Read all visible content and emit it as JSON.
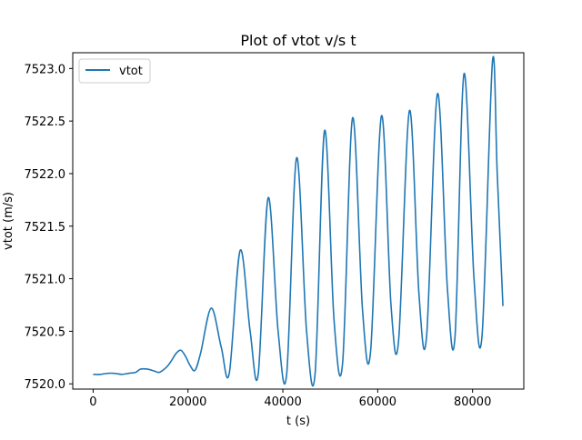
{
  "chart_data": {
    "type": "line",
    "title": "Plot of vtot v/s t",
    "xlabel": "t (s)",
    "ylabel": "vtot (m/s)",
    "xlim": [
      -4300,
      90800
    ],
    "ylim": [
      7519.95,
      7523.15
    ],
    "xticks": [
      0,
      20000,
      40000,
      60000,
      80000
    ],
    "xtick_labels": [
      "0",
      "20000",
      "40000",
      "60000",
      "80000"
    ],
    "yticks": [
      7520.0,
      7520.5,
      7521.0,
      7521.5,
      7522.0,
      7522.5,
      7523.0
    ],
    "ytick_labels": [
      "7520.0",
      "7520.5",
      "7521.0",
      "7521.5",
      "7522.0",
      "7522.5",
      "7523.0"
    ],
    "grid": false,
    "legend": {
      "position": "top-left",
      "entries": [
        "vtot"
      ]
    },
    "series": [
      {
        "name": "vtot",
        "color": "#1f77b4",
        "x": [
          0,
          1500,
          3000,
          4500,
          6000,
          7500,
          9000,
          10000,
          11500,
          13000,
          14000,
          15500,
          16500,
          17500,
          18500,
          19500,
          20500,
          21500,
          22700,
          24900,
          27000,
          28700,
          31000,
          33100,
          34800,
          36900,
          39000,
          40800,
          42900,
          45000,
          46800,
          48800,
          50800,
          52600,
          54700,
          56800,
          58500,
          60800,
          62800,
          64400,
          66700,
          68700,
          70300,
          72600,
          74700,
          76300,
          78200,
          80300,
          82000,
          84200,
          85200,
          86400
        ],
        "y": [
          7520.09,
          7520.09,
          7520.1,
          7520.1,
          7520.09,
          7520.1,
          7520.11,
          7520.14,
          7520.14,
          7520.12,
          7520.11,
          7520.16,
          7520.22,
          7520.29,
          7520.32,
          7520.26,
          7520.17,
          7520.13,
          7520.3,
          7520.72,
          7520.35,
          7520.1,
          7521.27,
          7520.5,
          7520.09,
          7521.77,
          7520.5,
          7520.09,
          7522.15,
          7520.5,
          7520.1,
          7522.41,
          7520.6,
          7520.2,
          7522.53,
          7520.7,
          7520.31,
          7522.55,
          7520.75,
          7520.41,
          7522.6,
          7520.85,
          7520.45,
          7522.76,
          7520.9,
          7520.45,
          7522.95,
          7521.0,
          7520.46,
          7523.07,
          7522.0,
          7520.74
        ]
      }
    ]
  }
}
